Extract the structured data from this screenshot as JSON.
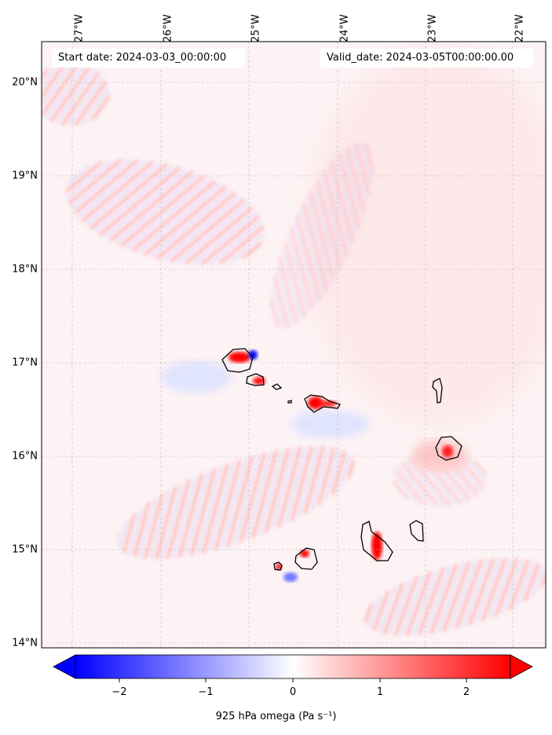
{
  "map": {
    "start_date_label": "Start date: 2024-03-03_00:00:00",
    "valid_date_label": "Valid_date: 2024-03-05T00:00:00.00",
    "lon_ticks": [
      "27°W",
      "26°W",
      "25°W",
      "24°W",
      "23°W",
      "22°W"
    ],
    "lat_ticks": [
      "20°N",
      "19°N",
      "18°N",
      "17°N",
      "16°N",
      "15°N",
      "14°N"
    ],
    "colors": {
      "negative": "#0000ff",
      "neutral": "#ffffff",
      "positive": "#ff0000",
      "coastline": "#000000"
    }
  },
  "colorbar": {
    "title": "925 hPa omega (Pa s⁻¹)",
    "tick_labels": [
      "−2",
      "−1",
      "0",
      "1",
      "2"
    ],
    "min": -2.6,
    "max": 2.6
  }
}
